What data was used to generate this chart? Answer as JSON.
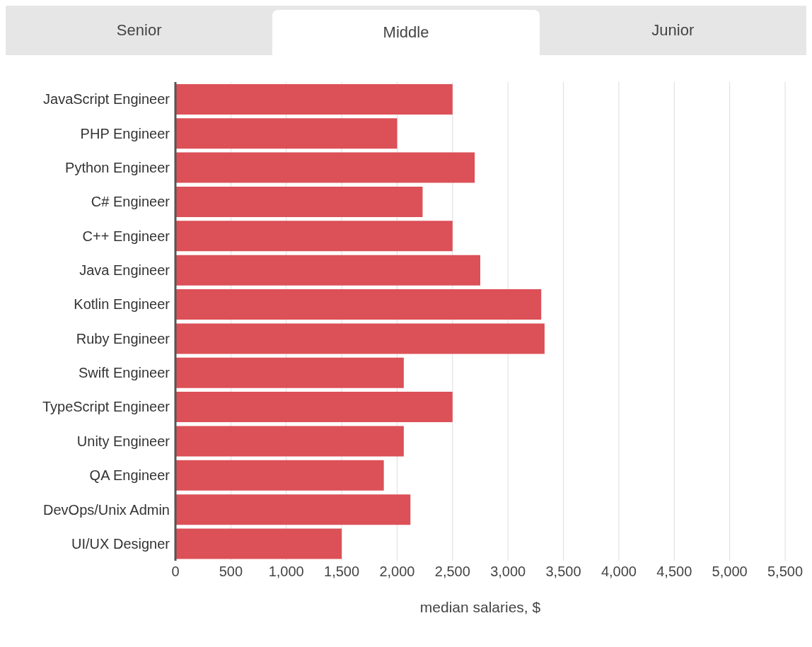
{
  "chart_data": {
    "type": "bar",
    "orientation": "horizontal",
    "annotations": [
      "Senior",
      "Middle",
      "Junior"
    ],
    "categories": [
      "JavaScript Engineer",
      "PHP Engineer",
      "Python Engineer",
      "C# Engineer",
      "C++ Engineer",
      "Java Engineer",
      "Kotlin Engineer",
      "Ruby Engineer",
      "Swift Engineer",
      "TypeScript Engineer",
      "Unity Engineer",
      "QA Engineer",
      "DevOps/Unix Admin",
      "UI/UX Designer"
    ],
    "values": [
      2500,
      2000,
      2700,
      2230,
      2500,
      2750,
      3300,
      3330,
      2060,
      2500,
      2060,
      1880,
      2120,
      1500
    ],
    "color": "#dc5057",
    "xlabel": "median salaries, $",
    "xlim": [
      0,
      5500
    ],
    "xticks": [
      0,
      500,
      {
        "value": 1000,
        "label": "1,000"
      },
      {
        "value": 1500,
        "label": "1,500"
      },
      {
        "value": 2000,
        "label": "2,000"
      },
      {
        "value": 2500,
        "label": "2,500"
      },
      {
        "value": 3000,
        "label": "3,000"
      },
      {
        "value": 3500,
        "label": "3,500"
      },
      {
        "value": 4000,
        "label": "4,000"
      },
      {
        "value": 4500,
        "label": "4,500"
      },
      {
        "value": 5000,
        "label": "5,000"
      },
      {
        "value": 5500,
        "label": "5,500"
      }
    ],
    "grid": "x",
    "legend": false
  }
}
